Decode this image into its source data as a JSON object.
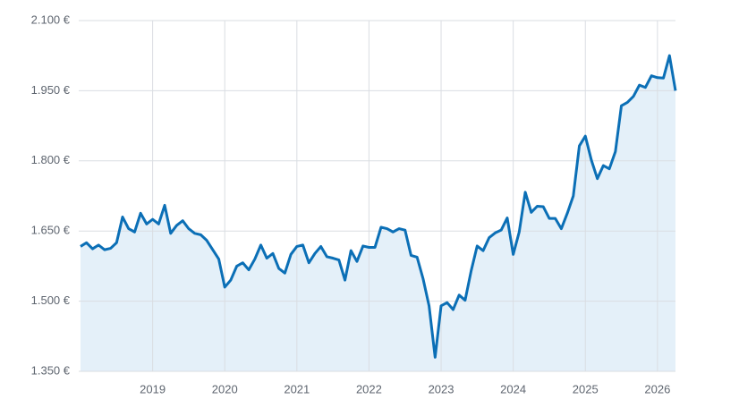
{
  "chart_data": {
    "type": "area",
    "color": "#0b6fb6",
    "fill": "#e4f0f9",
    "grid": true,
    "xlim": [
      2018,
      2026.25
    ],
    "xticks": [
      2019,
      2020,
      2021,
      2022,
      2023,
      2024,
      2025,
      2026
    ],
    "ylim": [
      1350,
      2100
    ],
    "yticks": [
      {
        "value": 1350,
        "label": "1.350 €"
      },
      {
        "value": 1500,
        "label": "1.500 €"
      },
      {
        "value": 1650,
        "label": "1.650 €"
      },
      {
        "value": 1800,
        "label": "1.800 €"
      },
      {
        "value": 1950,
        "label": "1.950 €"
      },
      {
        "value": 2100,
        "label": "2.100 €"
      }
    ],
    "x": [
      2018,
      2018.083,
      2018.167,
      2018.25,
      2018.333,
      2018.417,
      2018.5,
      2018.583,
      2018.667,
      2018.75,
      2018.833,
      2018.917,
      2019,
      2019.083,
      2019.167,
      2019.25,
      2019.333,
      2019.417,
      2019.5,
      2019.583,
      2019.667,
      2019.75,
      2019.833,
      2019.917,
      2020,
      2020.083,
      2020.167,
      2020.25,
      2020.333,
      2020.417,
      2020.5,
      2020.583,
      2020.667,
      2020.75,
      2020.833,
      2020.917,
      2021,
      2021.083,
      2021.167,
      2021.25,
      2021.333,
      2021.417,
      2021.5,
      2021.583,
      2021.667,
      2021.75,
      2021.833,
      2021.917,
      2022,
      2022.083,
      2022.167,
      2022.25,
      2022.333,
      2022.417,
      2022.5,
      2022.583,
      2022.667,
      2022.75,
      2022.833,
      2022.917,
      2023,
      2023.083,
      2023.167,
      2023.25,
      2023.333,
      2023.417,
      2023.5,
      2023.583,
      2023.667,
      2023.75,
      2023.833,
      2023.917,
      2024,
      2024.083,
      2024.167,
      2024.25,
      2024.333,
      2024.417,
      2024.5,
      2024.583,
      2024.667,
      2024.75,
      2024.833,
      2024.917,
      2025,
      2025.083,
      2025.167,
      2025.25,
      2025.333,
      2025.417,
      2025.5,
      2025.583,
      2025.667,
      2025.75,
      2025.833,
      2025.917,
      2026,
      2026.083,
      2026.167,
      2026.25
    ],
    "values": [
      1617,
      1625,
      1612,
      1620,
      1610,
      1613,
      1625,
      1680,
      1655,
      1648,
      1688,
      1665,
      1675,
      1665,
      1705,
      1645,
      1662,
      1672,
      1655,
      1645,
      1642,
      1630,
      1610,
      1590,
      1530,
      1545,
      1575,
      1582,
      1567,
      1590,
      1620,
      1592,
      1602,
      1570,
      1560,
      1600,
      1617,
      1620,
      1582,
      1602,
      1617,
      1595,
      1592,
      1588,
      1545,
      1608,
      1585,
      1618,
      1615,
      1615,
      1658,
      1655,
      1648,
      1655,
      1652,
      1598,
      1594,
      1548,
      1490,
      1380,
      1490,
      1497,
      1482,
      1513,
      1502,
      1565,
      1618,
      1608,
      1636,
      1646,
      1652,
      1678,
      1600,
      1648,
      1733,
      1690,
      1703,
      1702,
      1677,
      1677,
      1655,
      1688,
      1725,
      1832,
      1853,
      1802,
      1762,
      1790,
      1783,
      1820,
      1918,
      1925,
      1938,
      1962,
      1957,
      1982,
      1978,
      1977,
      2025,
      1950
    ]
  }
}
